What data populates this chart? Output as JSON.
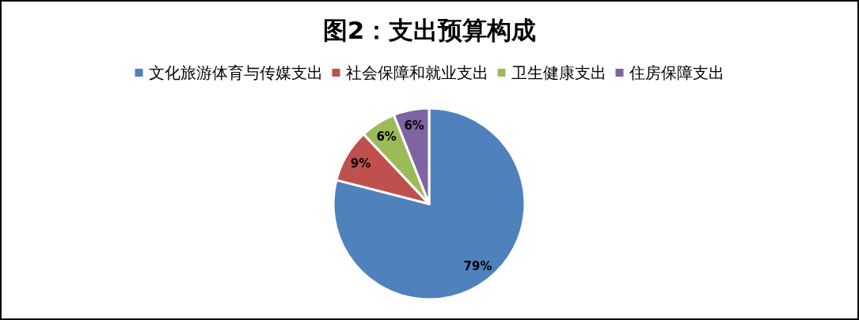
{
  "chart_data": {
    "type": "pie",
    "title": "图2：支出预算构成",
    "categories": [
      "文化旅游体育与传媒支出",
      "社会保障和就业支出",
      "卫生健康支出",
      "住房保障支出"
    ],
    "values": [
      79,
      9,
      6,
      6
    ],
    "colors": [
      "#4f81bd",
      "#c0504d",
      "#9bbb59",
      "#8064a2"
    ],
    "value_labels": [
      "79%",
      "9%",
      "6%",
      "6%"
    ],
    "legend": "top"
  }
}
